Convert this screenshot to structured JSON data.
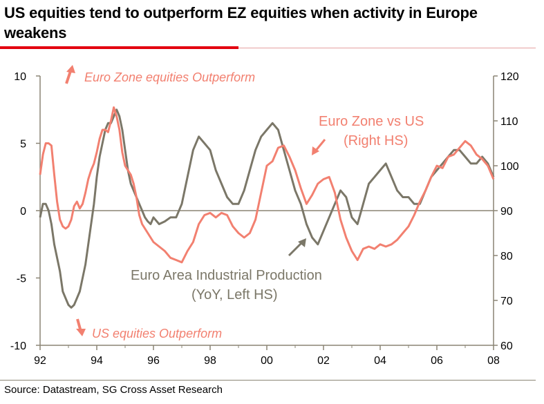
{
  "title": "US equities tend to outperform EZ equities when activity in Europe weakens",
  "source": "Source: Datastream, SG Cross Asset Research",
  "colors": {
    "ez_vs_us": "#f28070",
    "industrial_production": "#7b7768",
    "title_rule": "#e3000f"
  },
  "annotations": {
    "top": "Euro Zone  equities  Outperform",
    "bottom": "US equities   Outperform",
    "ez_label_1": "Euro Zone vs US",
    "ez_label_2": "(Right HS)",
    "ip_label_1": "Euro Area Industrial Production",
    "ip_label_2": "(YoY, Left HS)"
  },
  "chart_data": {
    "type": "line",
    "xlim": [
      1992,
      2008
    ],
    "x_ticks": [
      "92",
      "94",
      "96",
      "98",
      "00",
      "02",
      "04",
      "06",
      "08"
    ],
    "y_left": {
      "lim": [
        -10,
        10
      ],
      "ticks": [
        "10",
        "5",
        "0",
        "-5",
        "-10"
      ]
    },
    "y_right": {
      "lim": [
        60,
        120
      ],
      "ticks": [
        "120",
        "110",
        "100",
        "90",
        "80",
        "70",
        "60"
      ]
    },
    "series": [
      {
        "name": "Euro Area Industrial Production",
        "axis": "left",
        "x": [
          1992.0,
          1992.1,
          1992.2,
          1992.3,
          1992.4,
          1992.5,
          1992.6,
          1992.7,
          1992.8,
          1992.9,
          1993.0,
          1993.1,
          1993.2,
          1993.3,
          1993.4,
          1993.5,
          1993.6,
          1993.7,
          1993.8,
          1993.9,
          1994.0,
          1994.1,
          1994.2,
          1994.3,
          1994.4,
          1994.5,
          1994.6,
          1994.7,
          1994.8,
          1994.9,
          1995.0,
          1995.1,
          1995.2,
          1995.3,
          1995.4,
          1995.5,
          1995.6,
          1995.7,
          1995.8,
          1995.9,
          1996.0,
          1996.2,
          1996.4,
          1996.6,
          1996.8,
          1997.0,
          1997.2,
          1997.4,
          1997.6,
          1997.8,
          1998.0,
          1998.2,
          1998.4,
          1998.6,
          1998.8,
          1999.0,
          1999.2,
          1999.4,
          1999.6,
          1999.8,
          2000.0,
          2000.2,
          2000.4,
          2000.6,
          2000.8,
          2001.0,
          2001.2,
          2001.4,
          2001.6,
          2001.8,
          2002.0,
          2002.2,
          2002.4,
          2002.6,
          2002.8,
          2003.0,
          2003.2,
          2003.4,
          2003.6,
          2003.8,
          2004.0,
          2004.2,
          2004.4,
          2004.6,
          2004.8,
          2005.0,
          2005.2,
          2005.4,
          2005.6,
          2005.8,
          2006.0,
          2006.2,
          2006.4,
          2006.6,
          2006.8,
          2007.0,
          2007.2,
          2007.4,
          2007.6,
          2007.8,
          2008.0
        ],
        "y": [
          -0.5,
          0.5,
          0.5,
          0.0,
          -1.0,
          -2.5,
          -3.5,
          -4.5,
          -6.0,
          -6.5,
          -7.0,
          -7.2,
          -7.0,
          -6.5,
          -6.0,
          -5.0,
          -4.0,
          -2.5,
          -1.0,
          0.5,
          2.5,
          4.0,
          5.0,
          6.0,
          6.5,
          6.5,
          7.0,
          7.5,
          7.0,
          6.0,
          4.5,
          3.0,
          2.0,
          1.5,
          1.0,
          0.5,
          0.0,
          -0.5,
          -0.8,
          -1.0,
          -0.5,
          -1.0,
          -0.8,
          -0.5,
          -0.5,
          0.5,
          2.5,
          4.5,
          5.5,
          5.0,
          4.5,
          3.0,
          2.0,
          1.0,
          0.5,
          0.5,
          1.5,
          3.0,
          4.5,
          5.5,
          6.0,
          6.5,
          6.0,
          4.5,
          3.0,
          1.5,
          0.5,
          -1.0,
          -2.0,
          -2.5,
          -1.5,
          -0.5,
          0.5,
          1.5,
          1.0,
          -0.5,
          -1.0,
          0.5,
          2.0,
          2.5,
          3.0,
          3.5,
          2.5,
          1.5,
          1.0,
          1.0,
          0.5,
          0.5,
          1.5,
          2.5,
          3.0,
          3.5,
          4.0,
          4.5,
          4.5,
          4.0,
          3.5,
          3.5,
          4.0,
          3.5,
          2.5
        ]
      },
      {
        "name": "Euro Zone vs US",
        "axis": "right",
        "x": [
          1992.0,
          1992.1,
          1992.2,
          1992.3,
          1992.4,
          1992.5,
          1992.6,
          1992.7,
          1992.8,
          1992.9,
          1993.0,
          1993.1,
          1993.2,
          1993.3,
          1993.4,
          1993.5,
          1993.6,
          1993.7,
          1993.8,
          1993.9,
          1994.0,
          1994.1,
          1994.2,
          1994.3,
          1994.4,
          1994.5,
          1994.6,
          1994.7,
          1994.8,
          1994.9,
          1995.0,
          1995.1,
          1995.2,
          1995.3,
          1995.4,
          1995.5,
          1995.6,
          1995.7,
          1995.8,
          1995.9,
          1996.0,
          1996.2,
          1996.4,
          1996.6,
          1996.8,
          1997.0,
          1997.2,
          1997.4,
          1997.6,
          1997.8,
          1998.0,
          1998.2,
          1998.4,
          1998.6,
          1998.8,
          1999.0,
          1999.2,
          1999.4,
          1999.6,
          1999.8,
          2000.0,
          2000.2,
          2000.4,
          2000.6,
          2000.8,
          2001.0,
          2001.2,
          2001.4,
          2001.6,
          2001.8,
          2002.0,
          2002.2,
          2002.4,
          2002.6,
          2002.8,
          2003.0,
          2003.2,
          2003.4,
          2003.6,
          2003.8,
          2004.0,
          2004.2,
          2004.4,
          2004.6,
          2004.8,
          2005.0,
          2005.2,
          2005.4,
          2005.6,
          2005.8,
          2006.0,
          2006.2,
          2006.4,
          2006.6,
          2006.8,
          2007.0,
          2007.2,
          2007.4,
          2007.6,
          2007.8,
          2008.0
        ],
        "y": [
          98.0,
          102.5,
          105.0,
          105.0,
          104.5,
          98.0,
          92.0,
          88.0,
          86.5,
          86.0,
          86.5,
          88.0,
          91.0,
          92.0,
          90.5,
          91.5,
          94.0,
          97.0,
          99.0,
          100.5,
          103.0,
          106.0,
          108.0,
          108.0,
          107.5,
          110.0,
          113.0,
          111.0,
          108.0,
          103.0,
          100.0,
          99.0,
          98.0,
          96.0,
          93.0,
          89.0,
          87.0,
          86.0,
          85.0,
          84.0,
          83.0,
          82.0,
          81.0,
          79.5,
          79.0,
          78.5,
          81.0,
          83.0,
          87.0,
          89.0,
          89.5,
          88.5,
          89.5,
          89.0,
          86.5,
          85.0,
          84.0,
          85.0,
          88.0,
          94.0,
          100.0,
          101.0,
          104.0,
          104.5,
          102.0,
          99.0,
          95.0,
          91.5,
          93.5,
          96.0,
          97.0,
          97.5,
          94.0,
          88.0,
          84.0,
          81.0,
          79.0,
          81.5,
          82.0,
          81.5,
          82.5,
          82.0,
          82.5,
          83.5,
          85.0,
          86.5,
          89.0,
          92.0,
          94.5,
          97.5,
          100.0,
          99.5,
          102.0,
          102.5,
          104.0,
          105.5,
          104.5,
          102.5,
          101.5,
          100.0,
          97.0
        ]
      }
    ]
  }
}
